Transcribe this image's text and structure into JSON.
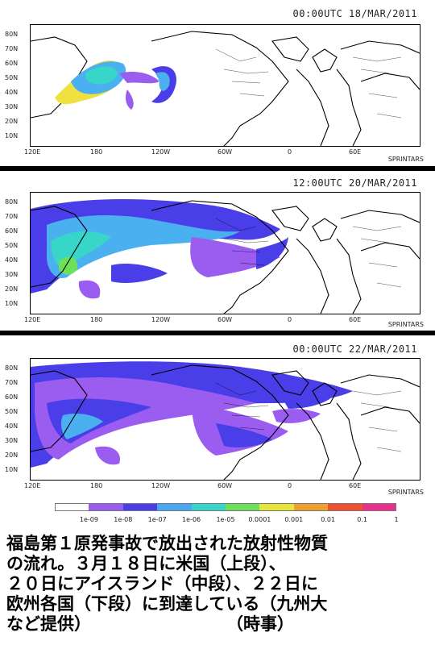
{
  "panels": [
    {
      "timestamp": "00:00UTC 18/MAR/2011",
      "credit": "SPRINTARS"
    },
    {
      "timestamp": "12:00UTC 20/MAR/2011",
      "credit": "SPRINTARS"
    },
    {
      "timestamp": "00:00UTC 22/MAR/2011",
      "credit": "SPRINTARS"
    }
  ],
  "lat_labels": [
    "80N",
    "70N",
    "60N",
    "50N",
    "40N",
    "30N",
    "20N",
    "10N"
  ],
  "lon_labels": [
    "120E",
    "180",
    "120W",
    "60W",
    "0",
    "60E"
  ],
  "colorbar": {
    "ticks": [
      "1e-09",
      "1e-08",
      "1e-07",
      "1e-06",
      "1e-05",
      "0.0001",
      "0.001",
      "0.01",
      "0.1",
      "1"
    ],
    "colors": [
      "#ffffff",
      "#9b5cf0",
      "#4a3ee8",
      "#4aa8f0",
      "#37d6c8",
      "#6ce05a",
      "#e6e63a",
      "#f0a030",
      "#f05030",
      "#e8308c"
    ]
  },
  "caption": {
    "lines": [
      "福島第１原発事故で放出された放射性物質",
      "の流れ。３月１８日に米国（上段）、",
      "２０日にアイスランド（中段）、２２日に",
      "欧州各国（下段）に到達している（九州大",
      "など提供）　　　　　　　　　（時事）"
    ]
  }
}
